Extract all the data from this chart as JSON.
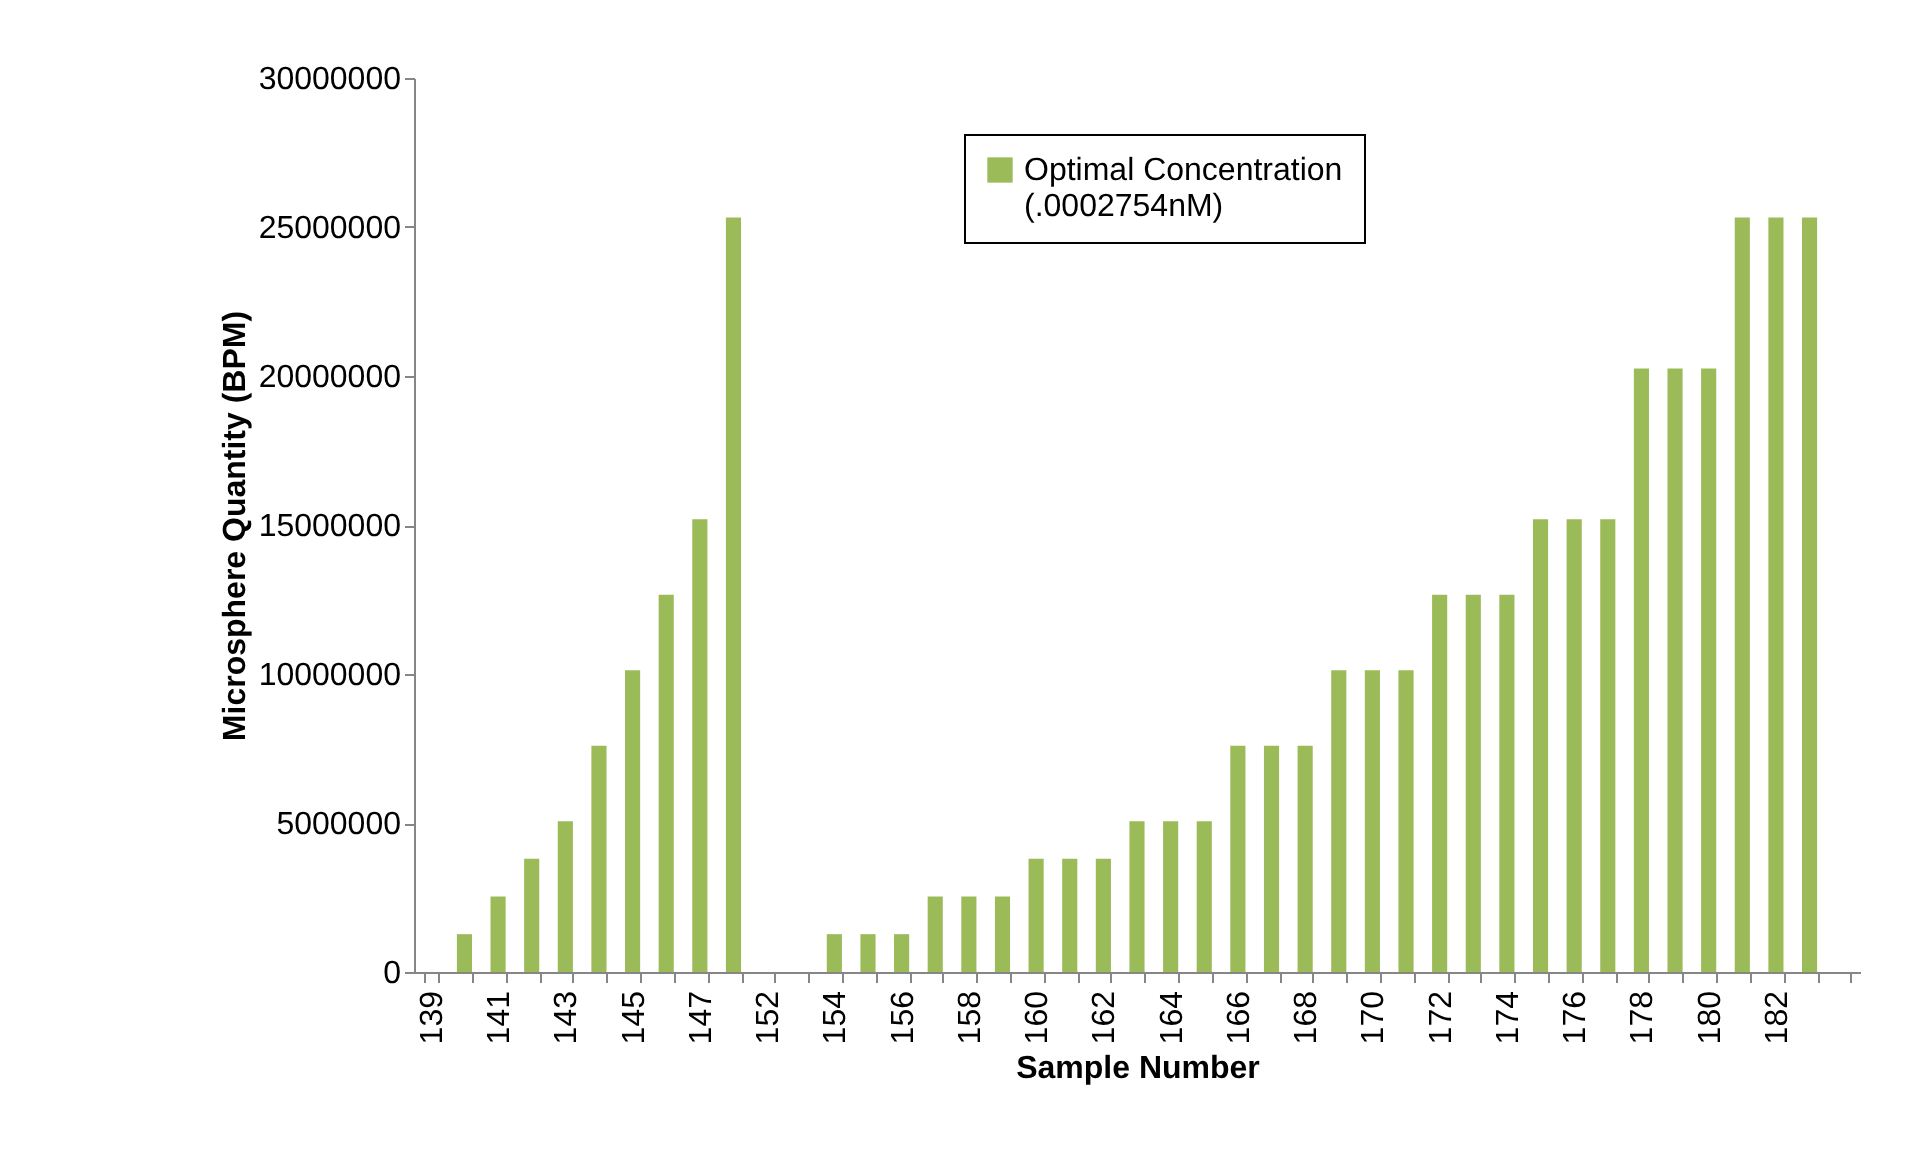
{
  "chart_data": {
    "type": "bar",
    "xlabel": "Sample Number",
    "ylabel": "Microsphere Quantity (BPM)",
    "categories": [
      "139",
      null,
      "141",
      null,
      "143",
      null,
      "145",
      null,
      "147",
      null,
      "152",
      null,
      "154",
      null,
      "156",
      null,
      "158",
      null,
      "160",
      null,
      "162",
      null,
      "164",
      null,
      "166",
      null,
      "168",
      null,
      "170",
      null,
      "172",
      null,
      "174",
      null,
      "176",
      null,
      "178",
      null,
      "180",
      null,
      "182",
      null,
      null
    ],
    "series": [
      {
        "name": "Optimal Concentration (.0002754nM)",
        "color": "#9bbb59",
        "values": [
          null,
          1270000,
          2530000,
          3800000,
          5060000,
          7590000,
          10130000,
          12660000,
          15190000,
          25320000,
          null,
          null,
          1270000,
          1270000,
          1270000,
          2530000,
          2530000,
          2530000,
          3800000,
          3800000,
          3800000,
          5060000,
          5060000,
          5060000,
          7590000,
          7590000,
          7590000,
          10130000,
          10130000,
          10130000,
          12660000,
          12660000,
          12660000,
          15190000,
          15190000,
          15190000,
          20250000,
          20250000,
          20250000,
          25320000,
          25320000,
          25320000,
          null
        ]
      }
    ],
    "ylim": [
      0,
      30000000
    ],
    "yticks": [
      0,
      5000000,
      10000000,
      15000000,
      20000000,
      25000000,
      30000000
    ],
    "grid": false,
    "legend": "top right"
  }
}
